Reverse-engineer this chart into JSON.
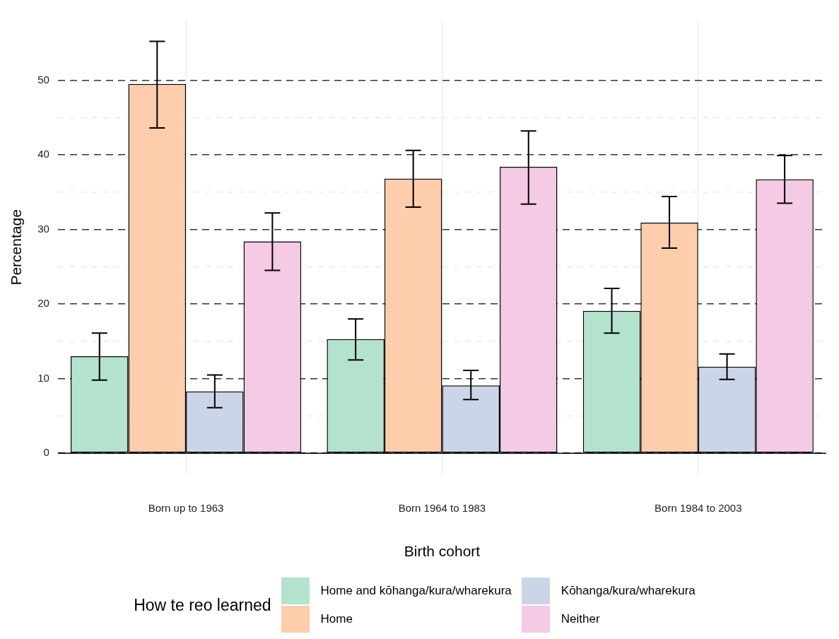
{
  "chart_data": {
    "type": "bar",
    "xlabel": "Birth cohort",
    "ylabel": "Percentage",
    "legend_title": "How te reo learned",
    "categories": [
      "Born up to 1963",
      "Born 1964 to 1983",
      "Born 1984 to 2003"
    ],
    "series": [
      {
        "name": "Home and kōhanga/kura/wharekura",
        "color": "#b3e2cd",
        "values": [
          13.0,
          15.3,
          19.1
        ],
        "errors": [
          [
            9.8,
            16.1
          ],
          [
            12.5,
            18.0
          ],
          [
            16.1,
            22.1
          ]
        ]
      },
      {
        "name": "Home",
        "color": "#fdcdac",
        "values": [
          49.5,
          36.8,
          30.9
        ],
        "errors": [
          [
            43.6,
            55.2
          ],
          [
            33.0,
            40.6
          ],
          [
            27.5,
            34.4
          ]
        ]
      },
      {
        "name": "Kōhanga/kura/wharekura",
        "color": "#cbd5e8",
        "values": [
          8.3,
          9.1,
          11.6
        ],
        "errors": [
          [
            6.1,
            10.5
          ],
          [
            7.2,
            11.1
          ],
          [
            9.9,
            13.3
          ]
        ]
      },
      {
        "name": "Neither",
        "color": "#f4cae4",
        "values": [
          28.4,
          38.4,
          36.7
        ],
        "errors": [
          [
            24.5,
            32.2
          ],
          [
            33.4,
            43.2
          ],
          [
            33.5,
            39.9
          ]
        ]
      }
    ],
    "ylim": [
      -2.8,
      58
    ],
    "yticks": [
      0,
      10,
      20,
      30,
      40,
      50
    ],
    "grid": true,
    "legend": "bottom",
    "ref_lines": [
      {
        "axis": "y",
        "value": 0,
        "color": "#000000"
      }
    ]
  }
}
